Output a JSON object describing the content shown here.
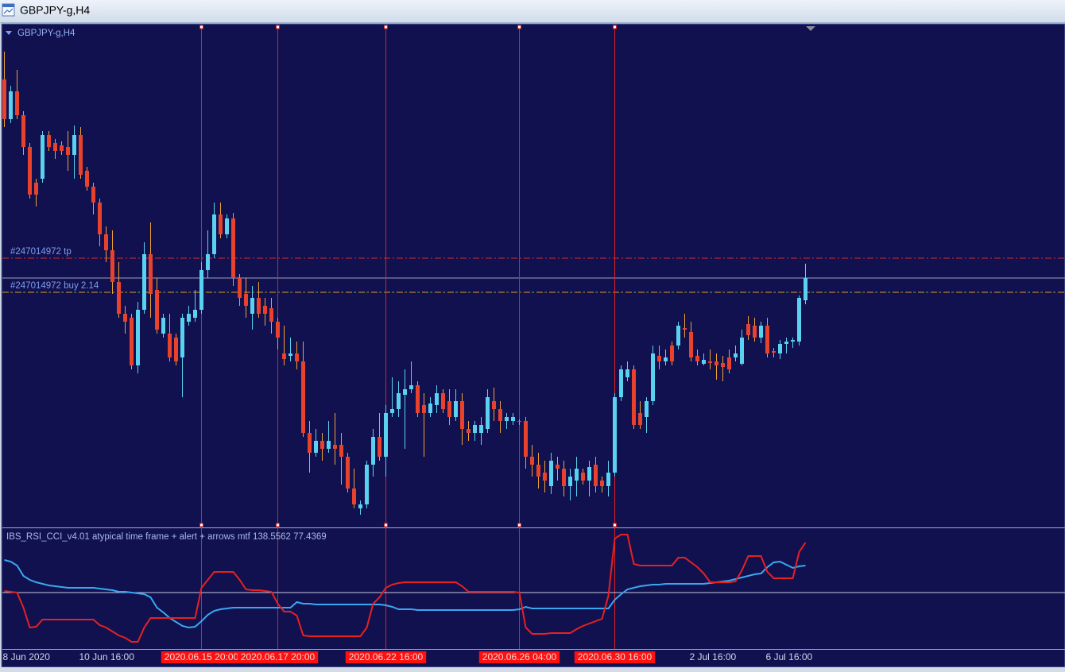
{
  "window": {
    "title": "GBPJPY-g,H4"
  },
  "chart_data": [
    {
      "type": "candlestick",
      "label": "GBPJPY-g,H4",
      "up_color": "#5ad2ef",
      "down_color": "#e8412c",
      "down_wick_color": "#f0a034",
      "ylim": [
        133.7,
        140.0
      ],
      "categories": [
        "8 Jun 2020",
        null,
        null,
        null,
        null,
        null,
        null,
        null,
        null,
        null,
        null,
        null,
        "10 Jun 16:00",
        null,
        null,
        null,
        null,
        null,
        null,
        null,
        null,
        null,
        null,
        null,
        null,
        null,
        null,
        null,
        null,
        null,
        null,
        null,
        null,
        null,
        null,
        null,
        null,
        null,
        null,
        null,
        null,
        null,
        null,
        null,
        null,
        null,
        null,
        null,
        null,
        null,
        null,
        null,
        null,
        null,
        null,
        null,
        null,
        null,
        null,
        null,
        null,
        null,
        null,
        null,
        null,
        null,
        null,
        null,
        null,
        null,
        null,
        null,
        null,
        null,
        null,
        null,
        null,
        null,
        null,
        null,
        null,
        null,
        null,
        null,
        null,
        null,
        null,
        null,
        null,
        null,
        null,
        null,
        null,
        null,
        null,
        null,
        null,
        null,
        null,
        null,
        null,
        null,
        null,
        null,
        null,
        null,
        null,
        null,
        "2 Jul 16:00",
        null,
        null,
        null,
        null,
        null,
        null,
        null,
        null,
        null,
        null,
        null,
        "6 Jul 16:00",
        null,
        null,
        null,
        null,
        null,
        null
      ],
      "ohlc": [
        [
          139.33,
          139.68,
          138.73,
          138.83
        ],
        [
          138.83,
          139.25,
          138.78,
          139.18
        ],
        [
          139.18,
          139.45,
          138.83,
          138.88
        ],
        [
          138.88,
          138.93,
          138.38,
          138.48
        ],
        [
          138.48,
          138.53,
          137.83,
          137.88
        ],
        [
          138.03,
          138.08,
          137.73,
          137.88
        ],
        [
          138.08,
          138.68,
          138.03,
          138.63
        ],
        [
          138.63,
          138.68,
          138.43,
          138.48
        ],
        [
          138.53,
          138.58,
          138.33,
          138.43
        ],
        [
          138.5,
          138.55,
          138.38,
          138.43
        ],
        [
          138.48,
          138.68,
          138.18,
          138.38
        ],
        [
          138.38,
          138.75,
          138.08,
          138.63
        ],
        [
          138.63,
          138.73,
          138.08,
          138.13
        ],
        [
          138.18,
          138.23,
          137.93,
          137.98
        ],
        [
          137.98,
          138.03,
          137.63,
          137.78
        ],
        [
          137.78,
          137.83,
          137.23,
          137.38
        ],
        [
          137.38,
          137.48,
          137.03,
          137.18
        ],
        [
          137.18,
          137.43,
          136.63,
          136.78
        ],
        [
          136.78,
          137.03,
          136.33,
          136.38
        ],
        [
          136.38,
          136.48,
          136.13,
          136.28
        ],
        [
          136.33,
          136.38,
          135.68,
          135.73
        ],
        [
          135.73,
          136.53,
          135.63,
          136.43
        ],
        [
          136.43,
          137.28,
          136.38,
          137.13
        ],
        [
          137.13,
          137.53,
          136.33,
          136.63
        ],
        [
          136.68,
          136.83,
          136.13,
          136.18
        ],
        [
          136.13,
          136.38,
          136.08,
          136.33
        ],
        [
          136.13,
          136.38,
          135.78,
          135.83
        ],
        [
          136.08,
          136.13,
          135.73,
          135.78
        ],
        [
          135.83,
          136.38,
          135.33,
          136.33
        ],
        [
          136.28,
          136.48,
          136.23,
          136.38
        ],
        [
          136.33,
          136.68,
          136.28,
          136.43
        ],
        [
          136.43,
          137.03,
          136.38,
          136.93
        ],
        [
          136.93,
          137.43,
          136.83,
          137.13
        ],
        [
          137.13,
          137.78,
          137.08,
          137.63
        ],
        [
          137.63,
          137.78,
          137.33,
          137.38
        ],
        [
          137.38,
          137.63,
          137.33,
          137.58
        ],
        [
          137.58,
          137.65,
          136.73,
          136.83
        ],
        [
          136.83,
          136.88,
          136.48,
          136.58
        ],
        [
          136.63,
          136.83,
          136.33,
          136.48
        ],
        [
          136.38,
          136.73,
          136.18,
          136.58
        ],
        [
          136.58,
          136.78,
          136.33,
          136.38
        ],
        [
          136.48,
          136.58,
          136.23,
          136.38
        ],
        [
          136.45,
          136.58,
          136.13,
          136.28
        ],
        [
          136.28,
          136.33,
          135.93,
          136.08
        ],
        [
          135.88,
          136.23,
          135.73,
          135.81
        ],
        [
          135.85,
          136.08,
          135.78,
          135.88
        ],
        [
          135.88,
          136.03,
          135.68,
          135.78
        ],
        [
          135.78,
          136.03,
          134.83,
          134.88
        ],
        [
          134.88,
          135.03,
          134.38,
          134.63
        ],
        [
          134.63,
          134.93,
          134.58,
          134.78
        ],
        [
          134.78,
          134.88,
          134.53,
          134.68
        ],
        [
          134.68,
          135.03,
          134.63,
          134.78
        ],
        [
          134.73,
          135.13,
          134.48,
          134.68
        ],
        [
          134.73,
          134.88,
          134.23,
          134.58
        ],
        [
          134.58,
          134.63,
          134.13,
          134.18
        ],
        [
          134.18,
          134.43,
          133.93,
          133.98
        ],
        [
          133.93,
          134.03,
          133.85,
          133.98
        ],
        [
          133.98,
          134.53,
          133.93,
          134.48
        ],
        [
          134.48,
          134.93,
          134.33,
          134.83
        ],
        [
          134.83,
          135.13,
          134.53,
          134.58
        ],
        [
          134.58,
          135.23,
          134.33,
          135.13
        ],
        [
          135.13,
          135.58,
          135.08,
          135.18
        ],
        [
          135.18,
          135.53,
          135.08,
          135.38
        ],
        [
          135.36,
          135.68,
          134.68,
          135.43
        ],
        [
          135.43,
          135.78,
          135.38,
          135.48
        ],
        [
          135.48,
          135.53,
          135.08,
          135.13
        ],
        [
          135.23,
          135.38,
          134.58,
          135.13
        ],
        [
          135.13,
          135.33,
          135.08,
          135.25
        ],
        [
          135.23,
          135.48,
          135.13,
          135.38
        ],
        [
          135.38,
          135.43,
          135.13,
          135.18
        ],
        [
          135.28,
          135.43,
          134.98,
          135.08
        ],
        [
          135.08,
          135.43,
          135.03,
          135.28
        ],
        [
          135.28,
          135.38,
          134.73,
          134.93
        ],
        [
          134.93,
          135.03,
          134.78,
          134.88
        ],
        [
          134.88,
          135.03,
          134.78,
          134.98
        ],
        [
          134.88,
          135.08,
          134.73,
          134.98
        ],
        [
          134.93,
          135.43,
          134.88,
          135.33
        ],
        [
          135.28,
          135.45,
          135.03,
          135.18
        ],
        [
          135.18,
          135.28,
          134.88,
          135.03
        ],
        [
          135.03,
          135.13,
          134.93,
          135.08
        ],
        [
          135.03,
          135.13,
          134.98,
          135.08
        ],
        [
          135.03,
          135.05,
          134.98,
          135.02
        ],
        [
          135.03,
          135.08,
          134.43,
          134.58
        ],
        [
          134.58,
          134.73,
          134.33,
          134.48
        ],
        [
          134.48,
          134.63,
          134.18,
          134.33
        ],
        [
          134.38,
          134.53,
          134.13,
          134.28
        ],
        [
          134.21,
          134.63,
          134.11,
          134.53
        ],
        [
          134.48,
          134.58,
          134.28,
          134.43
        ],
        [
          134.43,
          134.53,
          134.08,
          134.21
        ],
        [
          134.21,
          134.43,
          134.03,
          134.33
        ],
        [
          134.28,
          134.58,
          134.08,
          134.43
        ],
        [
          134.38,
          134.43,
          134.23,
          134.28
        ],
        [
          134.28,
          134.53,
          134.08,
          134.45
        ],
        [
          134.48,
          134.58,
          134.13,
          134.21
        ],
        [
          134.28,
          134.33,
          134.13,
          134.21
        ],
        [
          134.21,
          134.53,
          134.08,
          134.38
        ],
        [
          134.38,
          135.38,
          134.33,
          135.33
        ],
        [
          135.33,
          135.73,
          135.28,
          135.68
        ],
        [
          135.58,
          135.78,
          135.53,
          135.68
        ],
        [
          135.68,
          135.73,
          134.93,
          134.98
        ],
        [
          135.13,
          135.28,
          134.93,
          134.98
        ],
        [
          135.08,
          135.33,
          134.88,
          135.28
        ],
        [
          135.28,
          135.98,
          135.23,
          135.88
        ],
        [
          135.85,
          135.98,
          135.68,
          135.78
        ],
        [
          135.78,
          135.93,
          135.73,
          135.83
        ],
        [
          135.98,
          136.03,
          135.73,
          135.78
        ],
        [
          135.98,
          136.28,
          135.93,
          136.23
        ],
        [
          136.2,
          136.38,
          136.08,
          136.18
        ],
        [
          136.15,
          136.28,
          135.78,
          135.83
        ],
        [
          135.85,
          135.93,
          135.73,
          135.78
        ],
        [
          135.75,
          135.88,
          135.73,
          135.8
        ],
        [
          135.78,
          135.93,
          135.68,
          135.76
        ],
        [
          135.78,
          135.88,
          135.55,
          135.73
        ],
        [
          135.76,
          135.85,
          135.53,
          135.71
        ],
        [
          135.83,
          135.93,
          135.63,
          135.68
        ],
        [
          135.83,
          135.98,
          135.78,
          135.88
        ],
        [
          135.75,
          136.18,
          135.73,
          136.08
        ],
        [
          136.25,
          136.35,
          136.05,
          136.11
        ],
        [
          136.23,
          136.33,
          136.03,
          136.08
        ],
        [
          136.08,
          136.28,
          136.01,
          136.23
        ],
        [
          136.23,
          136.33,
          135.83,
          135.88
        ],
        [
          135.91,
          135.95,
          135.83,
          135.89
        ],
        [
          135.88,
          136.05,
          135.81,
          136.0
        ],
        [
          136.0,
          136.08,
          135.88,
          136.03
        ],
        [
          136.03,
          136.08,
          135.95,
          136.05
        ],
        [
          136.03,
          136.61,
          135.98,
          136.58
        ],
        [
          136.55,
          137.01,
          136.5,
          136.83
        ]
      ],
      "order_lines": [
        {
          "label": "#247014972 tp",
          "value": 137.08,
          "colors": [
            "#d82828"
          ]
        },
        {
          "label": "#247014972 buy 2.14",
          "value": 136.65,
          "colors": [
            "#e8a020",
            "#3cb043"
          ]
        }
      ],
      "vlines": [
        {
          "at": 31,
          "label": "2020.06.15 20:00"
        },
        {
          "at": 43,
          "label": "2020.06.17 20:00"
        },
        {
          "at": 60,
          "label": "2020.06.22 16:00"
        },
        {
          "at": 81,
          "label": "2020.06.26 04:00"
        },
        {
          "at": 96,
          "label": "2020.06.30 16:00"
        }
      ],
      "vline_color": "#e02020"
    },
    {
      "type": "line",
      "title": "IBS_RSI_CCI_v4.01 atypical time frame + alert + arrows mtf 138.5562 77.4369",
      "ylim": [
        -71,
        81
      ],
      "level": 0,
      "series": [
        {
          "color": "#3aa8f0",
          "values": [
            41,
            39,
            34,
            21,
            16,
            13,
            11,
            9,
            8,
            7,
            6,
            6,
            6,
            6,
            6,
            5,
            4,
            3,
            1,
            1,
            0,
            -1,
            -2,
            -6,
            -19,
            -25,
            -32,
            -37,
            -42,
            -44,
            -43,
            -36,
            -28,
            -23,
            -21,
            -20,
            -19,
            -19,
            -19,
            -19,
            -19,
            -19,
            -19,
            -19,
            -19,
            -19,
            -12,
            -14,
            -14,
            -15,
            -15,
            -15,
            -15,
            -15,
            -15,
            -15,
            -15,
            -15,
            -15,
            -15,
            -16,
            -18,
            -21,
            -21,
            -21,
            -22,
            -22,
            -22,
            -22,
            -22,
            -22,
            -22,
            -22,
            -22,
            -22,
            -22,
            -22,
            -22,
            -22,
            -22,
            -22,
            -21,
            -18,
            -20,
            -20,
            -20,
            -20,
            -20,
            -20,
            -20,
            -20,
            -20,
            -20,
            -20,
            -20,
            -20,
            -9,
            -2,
            4,
            6,
            8,
            9,
            10,
            10,
            11,
            11,
            11,
            11,
            11,
            11,
            11,
            12,
            13,
            14,
            15,
            17,
            19,
            21,
            23,
            24,
            32,
            38,
            39,
            35,
            31,
            33,
            34
          ]
        },
        {
          "color": "#e82020",
          "values": [
            2,
            1,
            0,
            -19,
            -44,
            -43,
            -34,
            -34,
            -34,
            -34,
            -34,
            -34,
            -34,
            -34,
            -34,
            -41,
            -44,
            -49,
            -54,
            -57,
            -62,
            -62,
            -44,
            -32,
            -32,
            -32,
            -32,
            -32,
            -32,
            -32,
            -32,
            6,
            16,
            26,
            26,
            26,
            26,
            16,
            4,
            3,
            3,
            2,
            1,
            -14,
            -24,
            -24,
            -29,
            -54,
            -55,
            -55,
            -55,
            -55,
            -55,
            -55,
            -55,
            -55,
            -55,
            -44,
            -14,
            -6,
            6,
            10,
            12,
            13,
            13,
            13,
            13,
            13,
            13,
            13,
            13,
            13,
            8,
            1,
            1,
            1,
            1,
            1,
            1,
            1,
            1,
            0,
            -44,
            -52,
            -52,
            -52,
            -51,
            -51,
            -51,
            -51,
            -46,
            -42,
            -39,
            -36,
            -33,
            -4,
            68,
            73,
            73,
            36,
            34,
            34,
            34,
            34,
            34,
            34,
            44,
            44,
            38,
            32,
            24,
            13,
            13,
            13,
            13,
            14,
            28,
            46,
            46,
            46,
            26,
            18,
            18,
            18,
            18,
            51,
            63
          ]
        }
      ]
    }
  ]
}
